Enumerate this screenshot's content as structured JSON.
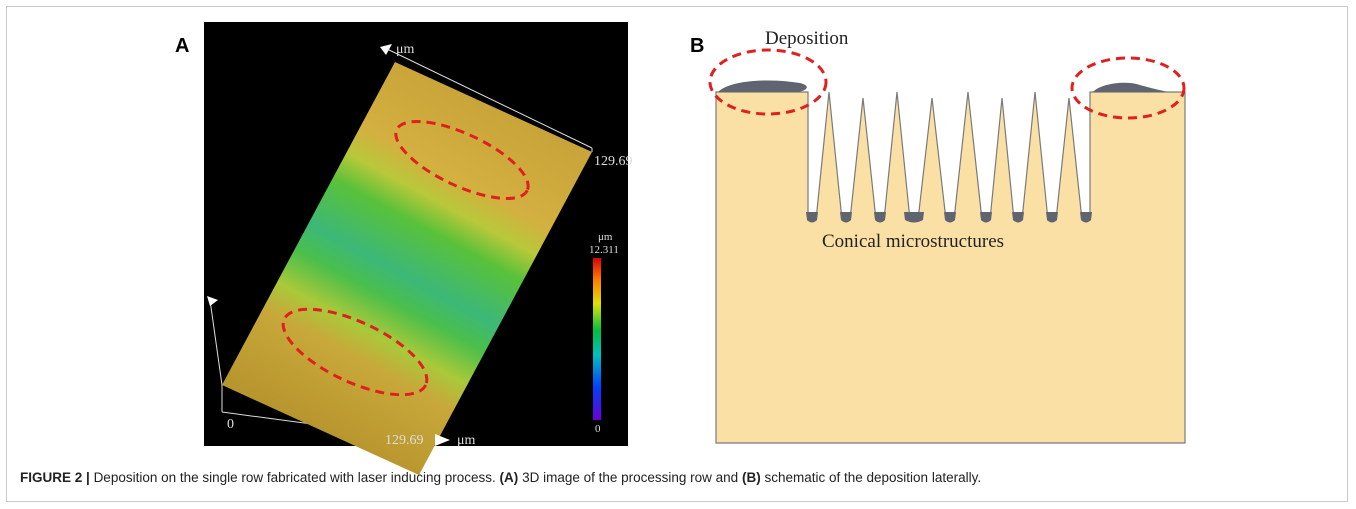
{
  "panel_a": {
    "label": "A",
    "axis_top_unit": "μm",
    "axis_right_value": "129.69",
    "colorbar_unit": "μm",
    "colorbar_max": "12.311",
    "colorbar_min": "0",
    "axis_origin": "0",
    "axis_bottom_value": "129.69",
    "axis_bottom_unit": "μm"
  },
  "panel_b": {
    "label": "B",
    "deposition_label": "Deposition",
    "cones_label": "Conical microstructures"
  },
  "caption": {
    "figure_label": "FIGURE 2 |",
    "text_1": "Deposition on the single row fabricated with laser inducing process.",
    "ref_a": "(A)",
    "text_2": "3D image of the processing row and",
    "ref_b": "(B)",
    "text_3": "schematic of the deposition laterally."
  }
}
